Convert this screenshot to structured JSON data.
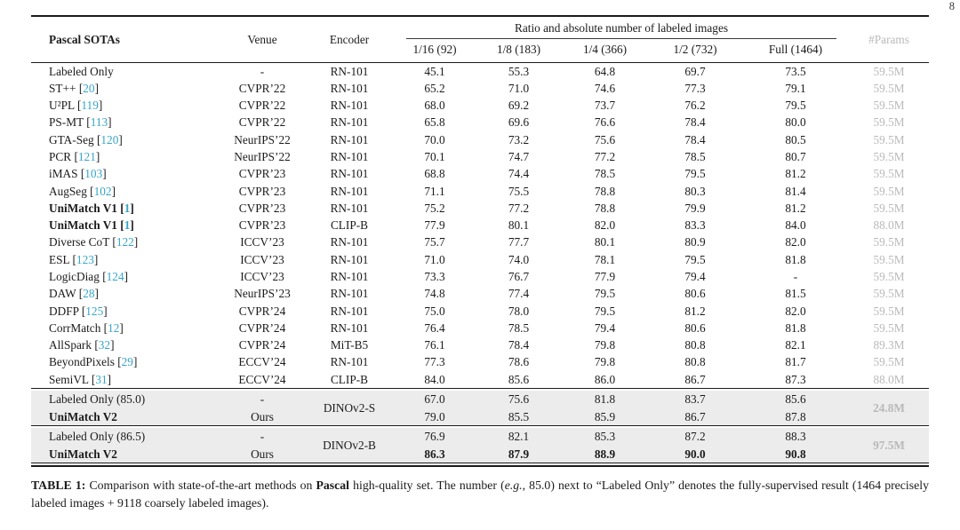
{
  "page_number": "8",
  "colors": {
    "citation": "#35a5c8",
    "params_gray": "#b9b9b9",
    "group_background": "#ececec"
  },
  "table": {
    "header": {
      "method": "Pascal SOTAs",
      "venue": "Venue",
      "encoder": "Encoder",
      "span": "Ratio and absolute number of labeled images",
      "subcols": [
        "1/16 (92)",
        "1/8 (183)",
        "1/4 (366)",
        "1/2 (732)",
        "Full (1464)"
      ],
      "params": "#Params"
    },
    "rows": [
      {
        "method": "Labeled Only",
        "cite": "",
        "venue": "-",
        "encoder": "RN-101",
        "values": [
          "45.1",
          "55.3",
          "64.8",
          "69.7",
          "73.5"
        ],
        "params": "59.5M",
        "bold": false,
        "bold_values": false
      },
      {
        "method": "ST++",
        "cite": "20",
        "venue": "CVPR’22",
        "encoder": "RN-101",
        "values": [
          "65.2",
          "71.0",
          "74.6",
          "77.3",
          "79.1"
        ],
        "params": "59.5M",
        "bold": false,
        "bold_values": false
      },
      {
        "method": "U²PL",
        "cite": "119",
        "venue": "CVPR’22",
        "encoder": "RN-101",
        "values": [
          "68.0",
          "69.2",
          "73.7",
          "76.2",
          "79.5"
        ],
        "params": "59.5M",
        "bold": false,
        "bold_values": false
      },
      {
        "method": "PS-MT",
        "cite": "113",
        "venue": "CVPR’22",
        "encoder": "RN-101",
        "values": [
          "65.8",
          "69.6",
          "76.6",
          "78.4",
          "80.0"
        ],
        "params": "59.5M",
        "bold": false,
        "bold_values": false
      },
      {
        "method": "GTA-Seg",
        "cite": "120",
        "venue": "NeurIPS’22",
        "encoder": "RN-101",
        "values": [
          "70.0",
          "73.2",
          "75.6",
          "78.4",
          "80.5"
        ],
        "params": "59.5M",
        "bold": false,
        "bold_values": false
      },
      {
        "method": "PCR",
        "cite": "121",
        "venue": "NeurIPS’22",
        "encoder": "RN-101",
        "values": [
          "70.1",
          "74.7",
          "77.2",
          "78.5",
          "80.7"
        ],
        "params": "59.5M",
        "bold": false,
        "bold_values": false
      },
      {
        "method": "iMAS",
        "cite": "103",
        "venue": "CVPR’23",
        "encoder": "RN-101",
        "values": [
          "68.8",
          "74.4",
          "78.5",
          "79.5",
          "81.2"
        ],
        "params": "59.5M",
        "bold": false,
        "bold_values": false
      },
      {
        "method": "AugSeg",
        "cite": "102",
        "venue": "CVPR’23",
        "encoder": "RN-101",
        "values": [
          "71.1",
          "75.5",
          "78.8",
          "80.3",
          "81.4"
        ],
        "params": "59.5M",
        "bold": false,
        "bold_values": false
      },
      {
        "method": "UniMatch V1",
        "cite": "1",
        "venue": "CVPR’23",
        "encoder": "RN-101",
        "values": [
          "75.2",
          "77.2",
          "78.8",
          "79.9",
          "81.2"
        ],
        "params": "59.5M",
        "bold": true,
        "bold_values": false
      },
      {
        "method": "UniMatch V1",
        "cite": "1",
        "venue": "CVPR’23",
        "encoder": "CLIP-B",
        "values": [
          "77.9",
          "80.1",
          "82.0",
          "83.3",
          "84.0"
        ],
        "params": "88.0M",
        "bold": true,
        "bold_values": false
      },
      {
        "method": "Diverse CoT",
        "cite": "122",
        "venue": "ICCV’23",
        "encoder": "RN-101",
        "values": [
          "75.7",
          "77.7",
          "80.1",
          "80.9",
          "82.0"
        ],
        "params": "59.5M",
        "bold": false,
        "bold_values": false
      },
      {
        "method": "ESL",
        "cite": "123",
        "venue": "ICCV’23",
        "encoder": "RN-101",
        "values": [
          "71.0",
          "74.0",
          "78.1",
          "79.5",
          "81.8"
        ],
        "params": "59.5M",
        "bold": false,
        "bold_values": false
      },
      {
        "method": "LogicDiag",
        "cite": "124",
        "venue": "ICCV’23",
        "encoder": "RN-101",
        "values": [
          "73.3",
          "76.7",
          "77.9",
          "79.4",
          "-"
        ],
        "params": "59.5M",
        "bold": false,
        "bold_values": false
      },
      {
        "method": "DAW",
        "cite": "28",
        "venue": "NeurIPS’23",
        "encoder": "RN-101",
        "values": [
          "74.8",
          "77.4",
          "79.5",
          "80.6",
          "81.5"
        ],
        "params": "59.5M",
        "bold": false,
        "bold_values": false
      },
      {
        "method": "DDFP",
        "cite": "125",
        "venue": "CVPR’24",
        "encoder": "RN-101",
        "values": [
          "75.0",
          "78.0",
          "79.5",
          "81.2",
          "82.0"
        ],
        "params": "59.5M",
        "bold": false,
        "bold_values": false
      },
      {
        "method": "CorrMatch",
        "cite": "12",
        "venue": "CVPR’24",
        "encoder": "RN-101",
        "values": [
          "76.4",
          "78.5",
          "79.4",
          "80.6",
          "81.8"
        ],
        "params": "59.5M",
        "bold": false,
        "bold_values": false
      },
      {
        "method": "AllSpark",
        "cite": "32",
        "venue": "CVPR’24",
        "encoder": "MiT-B5",
        "values": [
          "76.1",
          "78.4",
          "79.8",
          "80.8",
          "82.1"
        ],
        "params": "89.3M",
        "bold": false,
        "bold_values": false
      },
      {
        "method": "BeyondPixels",
        "cite": "29",
        "venue": "ECCV’24",
        "encoder": "RN-101",
        "values": [
          "77.3",
          "78.6",
          "79.8",
          "80.8",
          "81.7"
        ],
        "params": "59.5M",
        "bold": false,
        "bold_values": false
      },
      {
        "method": "SemiVL",
        "cite": "31",
        "venue": "ECCV’24",
        "encoder": "CLIP-B",
        "values": [
          "84.0",
          "85.6",
          "86.0",
          "86.7",
          "87.3"
        ],
        "params": "88.0M",
        "bold": false,
        "bold_values": false
      }
    ],
    "groups": [
      {
        "encoder": "DINOv2-S",
        "params": "24.8M",
        "rows": [
          {
            "method": "Labeled Only (85.0)",
            "cite": "",
            "venue": "-",
            "values": [
              "67.0",
              "75.6",
              "81.8",
              "83.7",
              "85.6"
            ],
            "bold": false,
            "bold_values": false
          },
          {
            "method": "UniMatch V2",
            "cite": "",
            "venue": "Ours",
            "values": [
              "79.0",
              "85.5",
              "85.9",
              "86.7",
              "87.8"
            ],
            "bold": true,
            "bold_values": false
          }
        ]
      },
      {
        "encoder": "DINOv2-B",
        "params": "97.5M",
        "rows": [
          {
            "method": "Labeled Only (86.5)",
            "cite": "",
            "venue": "-",
            "values": [
              "76.9",
              "82.1",
              "85.3",
              "87.2",
              "88.3"
            ],
            "bold": false,
            "bold_values": false
          },
          {
            "method": "UniMatch V2",
            "cite": "",
            "venue": "Ours",
            "values": [
              "86.3",
              "87.9",
              "88.9",
              "90.0",
              "90.8"
            ],
            "bold": true,
            "bold_values": true
          }
        ]
      }
    ]
  },
  "caption": {
    "label": "TABLE 1:",
    "t1": " Comparison with state-of-the-art methods on ",
    "b1": "Pascal",
    "t2": " high-quality set. The number (",
    "i1": "e.g.",
    "t3": ", 85.0) next to “Labeled Only” denotes the fully-supervised result (1464 precisely labeled images + 9118 coarsely labeled images)."
  }
}
